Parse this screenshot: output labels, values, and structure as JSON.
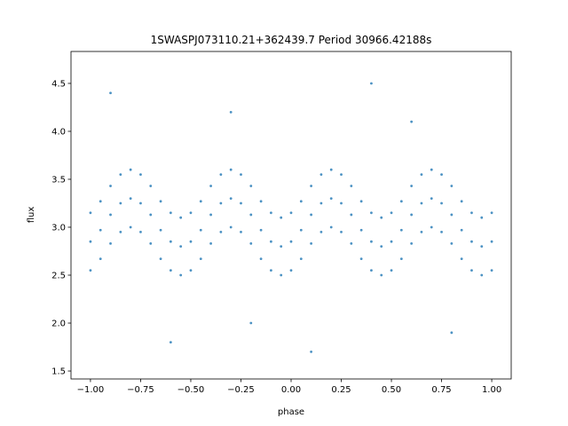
{
  "chart_data": {
    "type": "scatter",
    "title": "1SWASPJ073110.21+362439.7 Period 30966.42188s",
    "x_label": "phase",
    "y_label": "flux",
    "color": "#1f77b4",
    "grid": false,
    "xlim": [
      -1.097,
      1.097
    ],
    "ylim": [
      1.417,
      4.833
    ],
    "xticks": [
      {
        "value": -1,
        "label": "−1.00"
      },
      {
        "value": -0.75,
        "label": "−0.75"
      },
      {
        "value": -0.5,
        "label": "−0.50"
      },
      {
        "value": -0.25,
        "label": "−0.25"
      },
      {
        "value": 0,
        "label": "0.00"
      },
      0.25,
      {
        "value": 0.5,
        "label": "0.50"
      },
      0.75,
      {
        "value": 1,
        "label": "1.00"
      }
    ],
    "yticks": [
      1.5,
      {
        "value": 2,
        "label": "2.0"
      },
      2.5,
      {
        "value": 3,
        "label": "3.0"
      },
      3.5,
      {
        "value": 4,
        "label": "4.0"
      },
      4.5
    ],
    "x": [
      -1,
      -1,
      -1,
      -0.95,
      -0.95,
      -0.95,
      -0.9,
      -0.9,
      -0.9,
      -0.85,
      -0.85,
      -0.85,
      -0.8,
      -0.8,
      -0.8,
      -0.75,
      -0.75,
      -0.75,
      -0.7,
      -0.7,
      -0.7,
      -0.65,
      -0.65,
      -0.65,
      -0.6,
      -0.6,
      -0.6,
      -0.55,
      -0.55,
      -0.55,
      -0.5,
      -0.5,
      -0.5,
      -0.45,
      -0.45,
      -0.45,
      -0.4,
      -0.4,
      -0.4,
      -0.35,
      -0.35,
      -0.35,
      -0.3,
      -0.3,
      -0.3,
      -0.25,
      -0.25,
      -0.25,
      -0.2,
      -0.2,
      -0.2,
      -0.15,
      -0.15,
      -0.15,
      -0.1,
      -0.1,
      -0.1,
      -0.05,
      -0.05,
      -0.05,
      0,
      0,
      0,
      0.05,
      0.05,
      0.05,
      0.1,
      0.1,
      0.1,
      0.15,
      0.15,
      0.15,
      0.2,
      0.2,
      0.2,
      0.25,
      0.25,
      0.25,
      0.3,
      0.3,
      0.3,
      0.35,
      0.35,
      0.35,
      0.4,
      0.4,
      0.4,
      0.45,
      0.45,
      0.45,
      0.5,
      0.5,
      0.5,
      0.55,
      0.55,
      0.55,
      0.6,
      0.6,
      0.6,
      0.65,
      0.65,
      0.65,
      0.7,
      0.7,
      0.7,
      0.75,
      0.75,
      0.75,
      0.8,
      0.8,
      0.8,
      0.85,
      0.85,
      0.85,
      0.9,
      0.9,
      0.9,
      0.95,
      0.95,
      0.95,
      1,
      1,
      1,
      -0.9,
      -0.6,
      -0.3,
      0.1,
      0.4,
      0.8,
      0.6,
      -0.2
    ],
    "y": [
      2.85,
      3.15,
      2.55,
      2.97,
      3.27,
      2.67,
      3.13,
      3.43,
      2.83,
      3.25,
      3.55,
      2.95,
      3.3,
      3.6,
      3.0,
      3.25,
      3.55,
      2.95,
      3.13,
      3.43,
      2.83,
      2.97,
      3.27,
      2.67,
      2.85,
      3.15,
      2.55,
      2.8,
      3.1,
      2.5,
      2.85,
      3.15,
      2.55,
      2.97,
      3.27,
      2.67,
      3.13,
      3.43,
      2.83,
      3.25,
      3.55,
      2.95,
      3.3,
      3.6,
      3.0,
      3.25,
      3.55,
      2.95,
      3.13,
      3.43,
      2.83,
      2.97,
      3.27,
      2.67,
      2.85,
      3.15,
      2.55,
      2.8,
      3.1,
      2.5,
      2.85,
      3.15,
      2.55,
      2.97,
      3.27,
      2.67,
      3.13,
      3.43,
      2.83,
      3.25,
      3.55,
      2.95,
      3.3,
      3.6,
      3.0,
      3.25,
      3.55,
      2.95,
      3.13,
      3.43,
      2.83,
      2.97,
      3.27,
      2.67,
      2.85,
      3.15,
      2.55,
      2.8,
      3.1,
      2.5,
      2.85,
      3.15,
      2.55,
      2.97,
      3.27,
      2.67,
      3.13,
      3.43,
      2.83,
      3.25,
      3.55,
      2.95,
      3.3,
      3.6,
      3.0,
      3.25,
      3.55,
      2.95,
      3.13,
      3.43,
      2.83,
      2.97,
      3.27,
      2.67,
      2.85,
      3.15,
      2.55,
      2.8,
      3.1,
      2.5,
      2.85,
      3.15,
      2.55,
      4.4,
      1.8,
      4.2,
      1.7,
      4.5,
      1.9,
      4.1,
      2.0
    ]
  }
}
